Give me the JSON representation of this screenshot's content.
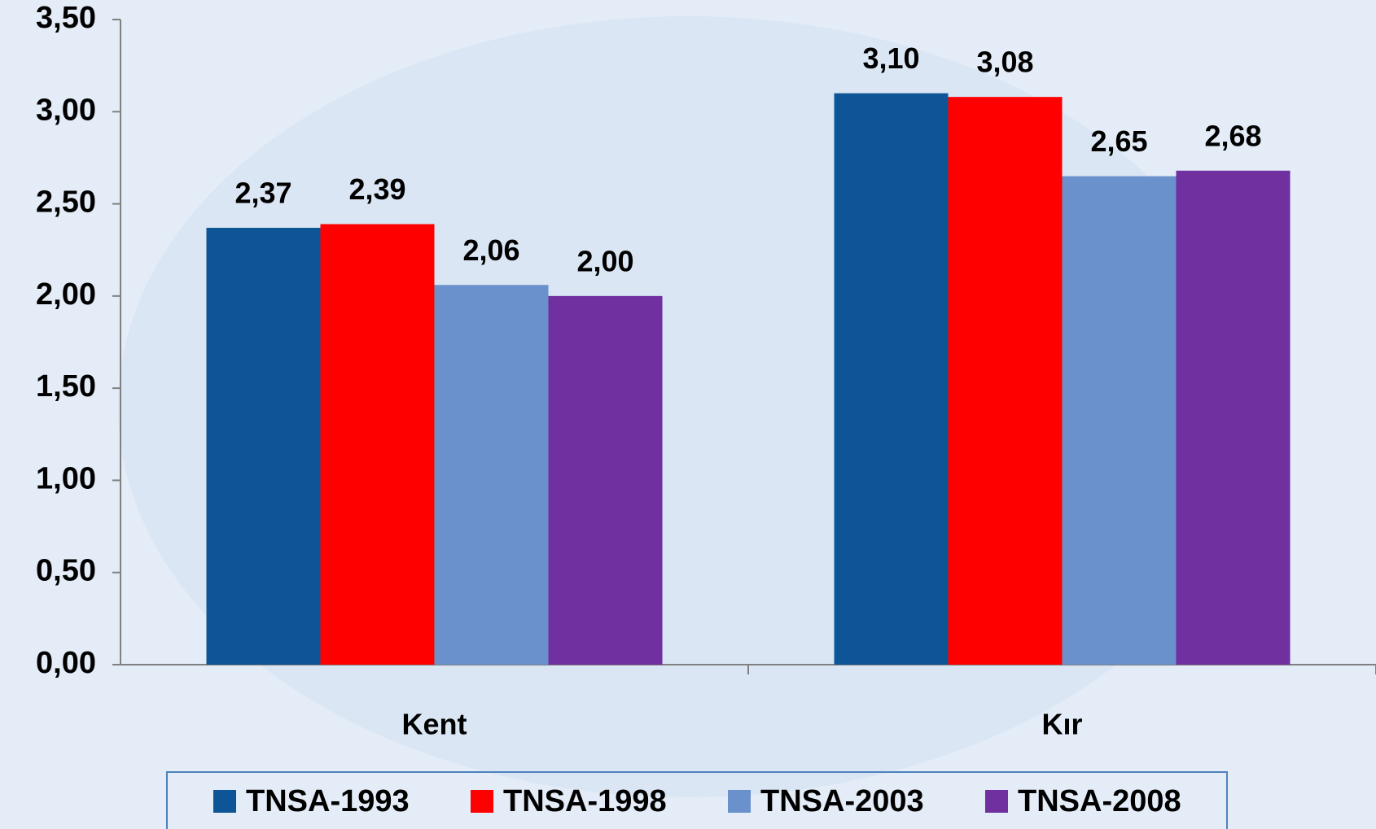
{
  "chart_data": {
    "type": "bar",
    "categories": [
      "Kent",
      "Kır"
    ],
    "series": [
      {
        "name": "TNSA-1993",
        "color": "#0d5597",
        "values": [
          2.37,
          3.1
        ],
        "value_labels": [
          "2,37",
          "3,10"
        ]
      },
      {
        "name": "TNSA-1998",
        "color": "#ff0000",
        "values": [
          2.39,
          3.08
        ],
        "value_labels": [
          "2,39",
          "3,08"
        ]
      },
      {
        "name": "TNSA-2003",
        "color": "#6a91cc",
        "values": [
          2.06,
          2.65
        ],
        "value_labels": [
          "2,06",
          "2,65"
        ]
      },
      {
        "name": "TNSA-2008",
        "color": "#7030a0",
        "values": [
          2.0,
          2.68
        ],
        "value_labels": [
          "2,00",
          "2,68"
        ]
      }
    ],
    "ylim": [
      0,
      3.5
    ],
    "yticks": [
      {
        "value": 0,
        "label": "0,00"
      },
      {
        "value": 0.5,
        "label": "0,50"
      },
      {
        "value": 1,
        "label": "1,00"
      },
      {
        "value": 1.5,
        "label": "1,50"
      },
      {
        "value": 2,
        "label": "2,00"
      },
      {
        "value": 2.5,
        "label": "2,50"
      },
      {
        "value": 3,
        "label": "3,00"
      },
      {
        "value": 3.5,
        "label": "3,50"
      }
    ],
    "legend": "bottom"
  }
}
